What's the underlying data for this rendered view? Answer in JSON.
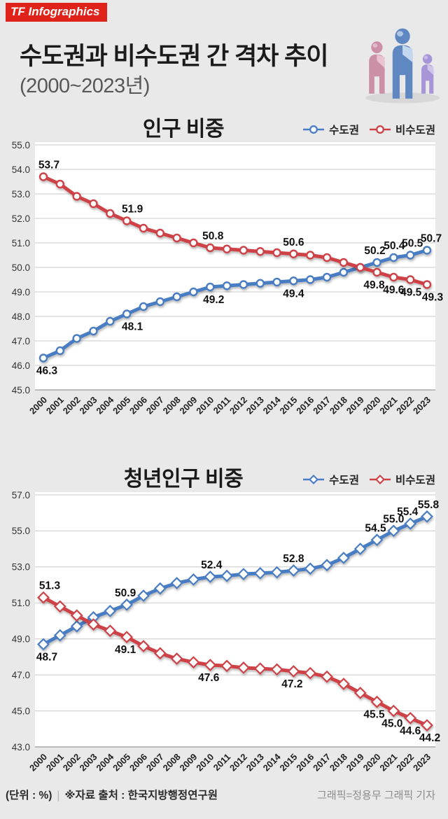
{
  "header": {
    "logo_text": "TF Infographics",
    "logo_bg": "#e0231a",
    "title": "수도권과 비수도권 간 격차 추이",
    "subtitle": "(2000~2023년)",
    "people_colors": {
      "pink": "#cb90a8",
      "pink_light": "#e9c3d1",
      "blue": "#5f88c2",
      "blue_light": "#c3d7ee",
      "purple": "#a795d8",
      "purple_light": "#d0c6ec",
      "shadow": "#d4d4d4"
    }
  },
  "chart_data": [
    {
      "type": "line",
      "title": "인구 비중",
      "x": [
        "2000",
        "2001",
        "2002",
        "2003",
        "2004",
        "2005",
        "2006",
        "2007",
        "2008",
        "2009",
        "2010",
        "2011",
        "2012",
        "2013",
        "2014",
        "2015",
        "2016",
        "2017",
        "2018",
        "2019",
        "2020",
        "2021",
        "2022",
        "2023"
      ],
      "series": [
        {
          "name": "수도권",
          "color": "#4a7dc3",
          "marker": "circle",
          "values": [
            46.3,
            46.6,
            47.1,
            47.4,
            47.8,
            48.1,
            48.4,
            48.6,
            48.8,
            49.0,
            49.2,
            49.25,
            49.3,
            49.35,
            49.4,
            49.45,
            49.5,
            49.6,
            49.8,
            50.0,
            50.2,
            50.4,
            50.5,
            50.7
          ]
        },
        {
          "name": "비수도권",
          "color": "#ce4247",
          "marker": "circle",
          "values": [
            53.7,
            53.4,
            52.9,
            52.6,
            52.2,
            51.9,
            51.6,
            51.4,
            51.2,
            51.0,
            50.8,
            50.75,
            50.7,
            50.65,
            50.6,
            50.55,
            50.5,
            50.4,
            50.2,
            50.0,
            49.8,
            49.6,
            49.5,
            49.3
          ]
        }
      ],
      "ylim": [
        45.0,
        55.0
      ],
      "yticks": [
        "55.0",
        "54.0",
        "53.0",
        "52.0",
        "51.0",
        "50.0",
        "49.0",
        "48.0",
        "47.0",
        "46.0",
        "45.0"
      ],
      "grid": true,
      "legend_position": "top-right",
      "point_labels": [
        {
          "x": "2000",
          "series": 1,
          "text": "53.7",
          "pos": "above",
          "dx": 8
        },
        {
          "x": "2005",
          "series": 1,
          "text": "51.9",
          "pos": "above",
          "dx": 8
        },
        {
          "x": "2010",
          "series": 1,
          "text": "50.8",
          "pos": "above",
          "dx": 4
        },
        {
          "x": "2015",
          "series": 1,
          "text": "50.6",
          "pos": "above",
          "dx": 0
        },
        {
          "x": "2020",
          "series": 1,
          "text": "49.8",
          "pos": "below",
          "dx": -4
        },
        {
          "x": "2021",
          "series": 1,
          "text": "49.6",
          "pos": "below",
          "dx": 0
        },
        {
          "x": "2022",
          "series": 1,
          "text": "49.5",
          "pos": "below",
          "dx": 1
        },
        {
          "x": "2023",
          "series": 1,
          "text": "49.3",
          "pos": "below",
          "dx": 8
        },
        {
          "x": "2000",
          "series": 0,
          "text": "46.3",
          "pos": "below",
          "dx": 5
        },
        {
          "x": "2005",
          "series": 0,
          "text": "48.1",
          "pos": "below",
          "dx": 8
        },
        {
          "x": "2010",
          "series": 0,
          "text": "49.2",
          "pos": "below",
          "dx": 5
        },
        {
          "x": "2015",
          "series": 0,
          "text": "49.4",
          "pos": "below",
          "dx": 0
        },
        {
          "x": "2020",
          "series": 0,
          "text": "50.2",
          "pos": "above",
          "dx": -3
        },
        {
          "x": "2021",
          "series": 0,
          "text": "50.4",
          "pos": "above",
          "dx": 1
        },
        {
          "x": "2022",
          "series": 0,
          "text": "50.5",
          "pos": "above",
          "dx": 3
        },
        {
          "x": "2023",
          "series": 0,
          "text": "50.7",
          "pos": "above",
          "dx": 6
        }
      ]
    },
    {
      "type": "line",
      "title": "청년인구 비중",
      "x": [
        "2000",
        "2001",
        "2002",
        "2003",
        "2004",
        "2005",
        "2006",
        "2007",
        "2008",
        "2009",
        "2010",
        "2011",
        "2012",
        "2013",
        "2014",
        "2015",
        "2016",
        "2017",
        "2018",
        "2019",
        "2020",
        "2021",
        "2022",
        "2023"
      ],
      "series": [
        {
          "name": "수도권",
          "color": "#4a7dc3",
          "marker": "diamond",
          "values": [
            48.7,
            49.2,
            49.7,
            50.2,
            50.55,
            50.9,
            51.4,
            51.8,
            52.1,
            52.3,
            52.45,
            52.5,
            52.6,
            52.65,
            52.7,
            52.8,
            52.9,
            53.1,
            53.5,
            54.0,
            54.5,
            55.0,
            55.4,
            55.8
          ]
        },
        {
          "name": "비수도권",
          "color": "#ce4247",
          "marker": "diamond",
          "values": [
            51.3,
            50.8,
            50.3,
            49.8,
            49.45,
            49.1,
            48.6,
            48.2,
            47.9,
            47.7,
            47.55,
            47.5,
            47.4,
            47.35,
            47.3,
            47.2,
            47.1,
            46.9,
            46.5,
            46.0,
            45.5,
            45.0,
            44.6,
            44.2
          ]
        }
      ],
      "ylim": [
        43.0,
        57.0
      ],
      "yticks": [
        "57.0",
        "55.0",
        "53.0",
        "51.0",
        "49.0",
        "47.0",
        "45.0",
        "43.0"
      ],
      "grid": true,
      "legend_position": "top-right",
      "point_labels": [
        {
          "x": "2000",
          "series": 1,
          "text": "51.3",
          "pos": "above",
          "dx": 9
        },
        {
          "x": "2005",
          "series": 1,
          "text": "49.1",
          "pos": "below",
          "dx": -2
        },
        {
          "x": "2010",
          "series": 1,
          "text": "47.6",
          "pos": "below",
          "dx": -2
        },
        {
          "x": "2015",
          "series": 1,
          "text": "47.2",
          "pos": "below",
          "dx": -2
        },
        {
          "x": "2020",
          "series": 1,
          "text": "45.5",
          "pos": "below",
          "dx": -4
        },
        {
          "x": "2021",
          "series": 1,
          "text": "45.0",
          "pos": "below",
          "dx": -2
        },
        {
          "x": "2022",
          "series": 1,
          "text": "44.6",
          "pos": "below",
          "dx": 0
        },
        {
          "x": "2023",
          "series": 1,
          "text": "44.2",
          "pos": "below",
          "dx": 4
        },
        {
          "x": "2000",
          "series": 0,
          "text": "48.7",
          "pos": "below",
          "dx": 5
        },
        {
          "x": "2005",
          "series": 0,
          "text": "50.9",
          "pos": "above",
          "dx": -2
        },
        {
          "x": "2010",
          "series": 0,
          "text": "52.4",
          "pos": "above",
          "dx": 2
        },
        {
          "x": "2015",
          "series": 0,
          "text": "52.8",
          "pos": "above",
          "dx": 0
        },
        {
          "x": "2020",
          "series": 0,
          "text": "54.5",
          "pos": "above",
          "dx": -2
        },
        {
          "x": "2021",
          "series": 0,
          "text": "55.0",
          "pos": "above",
          "dx": 0
        },
        {
          "x": "2022",
          "series": 0,
          "text": "55.4",
          "pos": "above",
          "dx": -4
        },
        {
          "x": "2023",
          "series": 0,
          "text": "55.8",
          "pos": "above",
          "dx": 2
        }
      ]
    }
  ],
  "footer": {
    "unit_label": "(단위 : %)",
    "divider": "|",
    "source": "※자료 출처 : 한국지방행정연구원",
    "credit": "그래픽=정용무 그래픽 기자"
  }
}
